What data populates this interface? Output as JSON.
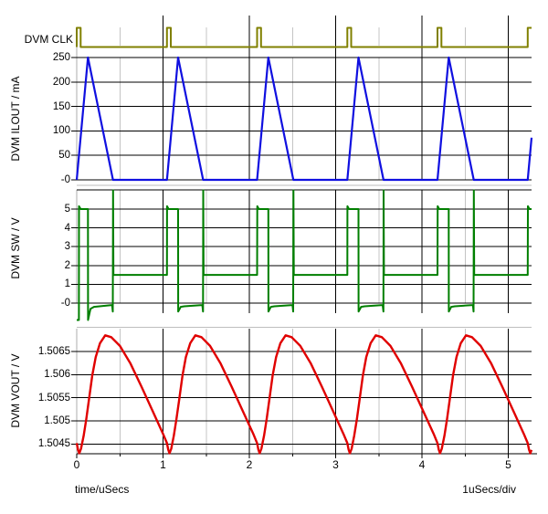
{
  "labels": {
    "clk_axis": "DVM CLK",
    "ilout_axis": "DVM ILOUT / mA",
    "sw_axis": "DVM SW / V",
    "vout_axis": "DVM VOUT / V",
    "time_axis": "time/uSecs",
    "per_div": "1uSecs/div"
  },
  "colors": {
    "clk_trace": "#808000",
    "ilout_trace": "#1010E0",
    "sw_trace": "#007F00",
    "vout_trace": "#E00000",
    "grid_major": "#000000",
    "grid_minor": "#C4C4C4",
    "axis_spine": "#ACACAC",
    "separator": "#BEBEBE",
    "text": "#000000",
    "background": "#FFFFFF"
  },
  "axes": {
    "x": {
      "major_ticks": [
        0,
        1,
        2,
        3,
        4,
        5
      ],
      "major_labels": [
        "0",
        "1",
        "2",
        "3",
        "4",
        "5"
      ],
      "minor_ticks": [
        0.5,
        1.5,
        2.5,
        3.5,
        4.5
      ],
      "range": [
        0,
        5.27
      ],
      "unit": "uSecs"
    },
    "ilout_y": {
      "tick_labels": [
        "250",
        "200",
        "150",
        "100",
        "50",
        "-0"
      ],
      "tick_values": [
        250,
        200,
        150,
        100,
        50,
        0
      ],
      "range": [
        0,
        250
      ],
      "unit": "mA"
    },
    "sw_y": {
      "tick_labels": [
        "5",
        "4",
        "3",
        "2",
        "1",
        "-0"
      ],
      "tick_values": [
        5,
        4,
        3,
        2,
        1,
        0
      ],
      "range": [
        -0.9,
        6.0
      ],
      "unit": "V"
    },
    "vout_y": {
      "tick_labels": [
        "1.5065",
        "1.506",
        "1.5055",
        "1.505",
        "1.5045"
      ],
      "tick_values": [
        1.5065,
        1.506,
        1.5055,
        1.505,
        1.5045
      ],
      "range": [
        1.5043,
        1.50685
      ],
      "unit": "V"
    }
  },
  "chart_data": [
    {
      "type": "line",
      "name": "DVM CLK",
      "style": "digital-pulses",
      "x_unit": "uSecs",
      "cycle_starts": [
        0,
        1.045,
        2.09,
        3.135,
        4.18,
        5.225
      ],
      "pulse_width": 0.045,
      "high": 1,
      "low": 0,
      "note": "narrow clock pulses, period 1.045 uSecs"
    },
    {
      "type": "line",
      "name": "DVM ILOUT",
      "y_unit": "mA",
      "x_unit": "uSecs",
      "cycle_starts": [
        0,
        1.045,
        2.09,
        3.135,
        4.18,
        5.225
      ],
      "cycle_shape": [
        [
          0,
          0
        ],
        [
          0.13,
          250
        ],
        [
          0.42,
          0
        ],
        [
          1.045,
          0
        ]
      ],
      "peak": 250,
      "base": 0,
      "note": "triangular inductor-current pulses: ramp up 0 to 250 mA in 0.13 uS, ramp down to 0 by 0.42 uS, flat at 0 until next cycle"
    },
    {
      "type": "line",
      "name": "DVM SW",
      "y_unit": "V",
      "x_unit": "uSecs",
      "cycle_starts": [
        0,
        1.045,
        2.09,
        3.135,
        4.18,
        5.225
      ],
      "cycle_shape": [
        [
          0,
          1.5
        ],
        [
          0.002,
          5.15
        ],
        [
          0.02,
          5.0
        ],
        [
          0.13,
          5.0
        ],
        [
          0.131,
          -0.45
        ],
        [
          0.16,
          -0.2
        ],
        [
          0.2,
          -0.17
        ],
        [
          0.41,
          -0.1
        ],
        [
          0.418,
          -0.45
        ],
        [
          0.421,
          6.0
        ],
        [
          0.425,
          1.5
        ],
        [
          1.045,
          1.5
        ]
      ],
      "first_cycle_shape": [
        [
          0,
          -0.9
        ],
        [
          0.025,
          -0.9
        ],
        [
          0.026,
          5.15
        ],
        [
          0.045,
          5.0
        ],
        [
          0.13,
          5.0
        ],
        [
          0.131,
          -0.9
        ],
        [
          0.16,
          -0.3
        ],
        [
          0.2,
          -0.2
        ],
        [
          0.41,
          -0.1
        ],
        [
          0.418,
          -0.45
        ],
        [
          0.421,
          6.0
        ],
        [
          0.425,
          1.5
        ],
        [
          1.045,
          1.5
        ]
      ],
      "levels": {
        "on": 5.0,
        "diode": -0.2,
        "idle": 1.5,
        "ring_top": 6.0,
        "ring_bottom": -0.45
      },
      "note": "switch node: 5 V while switch on, ~-0.2 V diode conduction, ringing spike when current reaches zero, rests at 1.5 V"
    },
    {
      "type": "line",
      "name": "DVM VOUT",
      "y_unit": "V",
      "x_unit": "uSecs",
      "cycle_starts": [
        0,
        1.045,
        2.09,
        3.135,
        4.18,
        5.225
      ],
      "cycle_shape": [
        [
          0,
          1.50452
        ],
        [
          0.015,
          1.50438
        ],
        [
          0.03,
          1.5043
        ],
        [
          0.05,
          1.5044
        ],
        [
          0.08,
          1.50468
        ],
        [
          0.11,
          1.50503
        ],
        [
          0.14,
          1.50543
        ],
        [
          0.18,
          1.50598
        ],
        [
          0.22,
          1.50638
        ],
        [
          0.27,
          1.50668
        ],
        [
          0.33,
          1.50685
        ],
        [
          0.4,
          1.50681
        ],
        [
          0.5,
          1.50662
        ],
        [
          0.62,
          1.50625
        ],
        [
          0.75,
          1.50574
        ],
        [
          0.88,
          1.50521
        ],
        [
          1.0,
          1.50472
        ],
        [
          1.045,
          1.50452
        ]
      ],
      "min": 1.5043,
      "max": 1.50685,
      "note": "output ripple: sharp minimum 1.5043 V just after each clock pulse, rounded maximum 1.50685 V, slow decay"
    }
  ]
}
